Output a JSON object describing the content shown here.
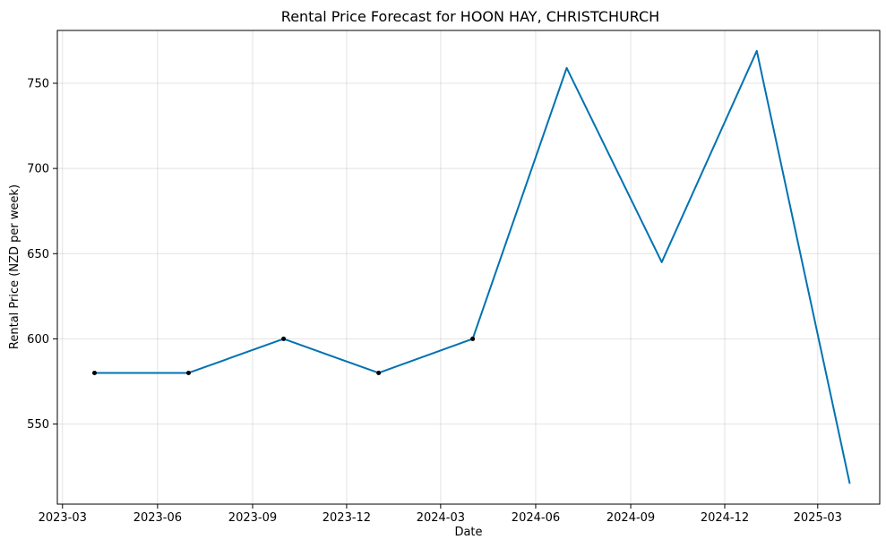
{
  "chart_data": {
    "type": "line",
    "title": "Rental Price Forecast for HOON HAY, CHRISTCHURCH",
    "xlabel": "Date",
    "ylabel": "Rental Price (NZD per week)",
    "x_ticks": [
      "2023-03",
      "2023-06",
      "2023-09",
      "2023-12",
      "2024-03",
      "2024-06",
      "2024-09",
      "2024-12",
      "2025-03"
    ],
    "y_ticks": [
      550,
      600,
      650,
      700,
      750
    ],
    "xlim": [
      "2023-02-24",
      "2025-04-30"
    ],
    "ylim": [
      503,
      781
    ],
    "grid": true,
    "line_color": "#0072b2",
    "marker_color": "#000000",
    "forecast": {
      "x": [
        "2023-04-01",
        "2023-07-01",
        "2023-10-01",
        "2024-01-01",
        "2024-04-01",
        "2024-07-01",
        "2024-10-01",
        "2025-01-01",
        "2025-04-01"
      ],
      "y": [
        580,
        580,
        600,
        580,
        600,
        759,
        645,
        769,
        515
      ]
    },
    "observed": {
      "x": [
        "2023-04-01",
        "2023-07-01",
        "2023-10-01",
        "2024-01-01",
        "2024-04-01"
      ],
      "y": [
        580,
        580,
        600,
        580,
        600
      ]
    }
  }
}
